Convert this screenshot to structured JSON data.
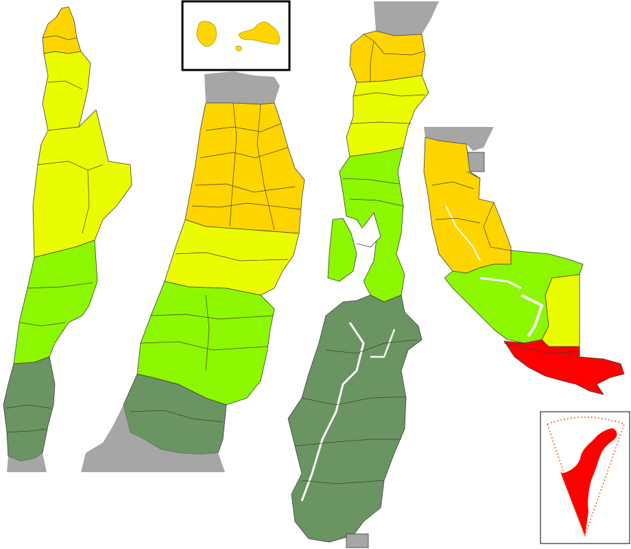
{
  "colors": {
    "background": "#ffffff",
    "neighbor_gray": "#a6a6a6",
    "orange_yellow": "#ffd500",
    "yellow": "#ecfc00",
    "yellow_green": "#d8f500",
    "light_green": "#8cf700",
    "dark_green": "#6b9463",
    "red": "#ff0000",
    "outline": "#3a3a3a",
    "inset_border": "#000000",
    "antarctic_dash": "#f07f3c"
  },
  "map_panels": [
    {
      "name": "northern-chile-strip",
      "color_classes": [
        "orange_yellow",
        "yellow",
        "light_green",
        "dark_green"
      ]
    },
    {
      "name": "central-chile-strip",
      "color_classes": [
        "orange_yellow",
        "yellow",
        "light_green",
        "dark_green"
      ]
    },
    {
      "name": "southern-chile-strip",
      "color_classes": [
        "orange_yellow",
        "yellow",
        "light_green",
        "dark_green"
      ]
    },
    {
      "name": "magallanes-strip",
      "color_classes": [
        "orange_yellow",
        "yellow",
        "light_green",
        "red"
      ]
    }
  ],
  "insets": [
    {
      "name": "juan-fernandez-islands",
      "fill": "orange_yellow"
    },
    {
      "name": "antarctic-territory",
      "fill": "red"
    }
  ]
}
